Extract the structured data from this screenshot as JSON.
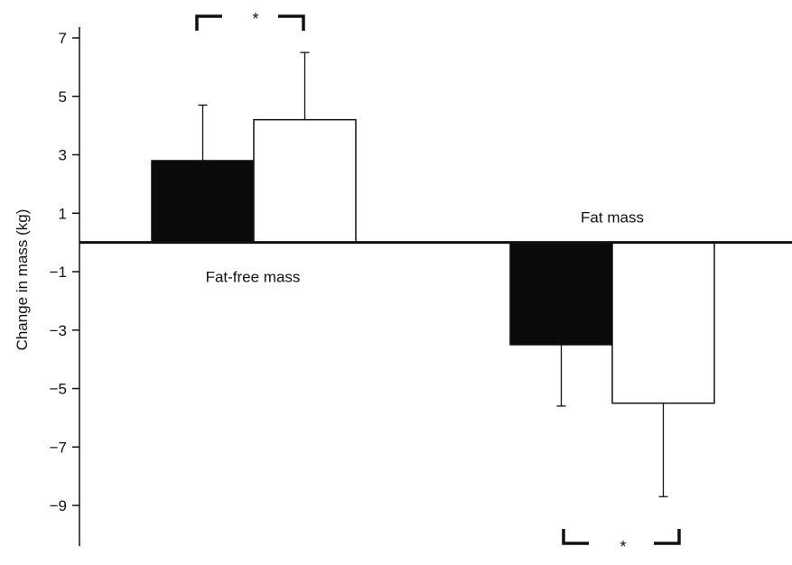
{
  "chart_data": {
    "type": "bar",
    "ylabel": "Change in mass (kg)",
    "ylim": [
      -10,
      7.5
    ],
    "yticks": [
      7,
      5,
      3,
      1,
      -1,
      -3,
      -5,
      -7,
      -9
    ],
    "ytick_labels": [
      "7",
      "5",
      "3",
      "1",
      "−1",
      "−3",
      "−5",
      "−7",
      "−9"
    ],
    "groups": [
      {
        "label": "Fat-free mass",
        "bars": [
          {
            "value": 2.8,
            "error": 1.9,
            "fill": "black"
          },
          {
            "value": 4.2,
            "error": 2.3,
            "fill": "white"
          }
        ],
        "significance": "*"
      },
      {
        "label": "Fat mass",
        "bars": [
          {
            "value": -3.5,
            "error": 2.1,
            "fill": "black"
          },
          {
            "value": -5.5,
            "error": 3.2,
            "fill": "white"
          }
        ],
        "significance": "*"
      }
    ],
    "colors": {
      "black_bar": "#0a0a0a",
      "white_bar": "#ffffff",
      "outline": "#111111"
    }
  }
}
